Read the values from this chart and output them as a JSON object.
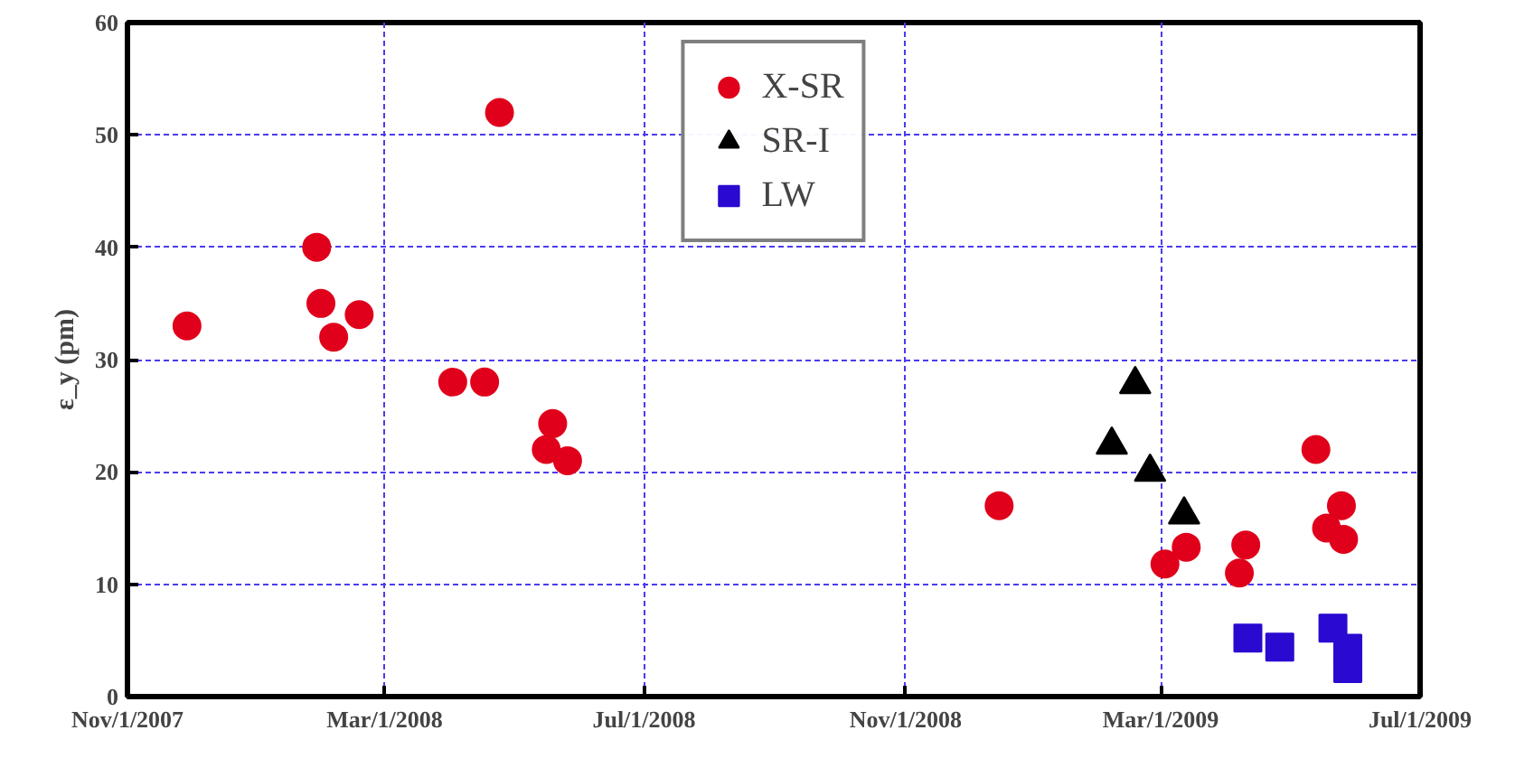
{
  "chart_data": {
    "type": "scatter",
    "ylabel": "ε_y (pm)",
    "xlim": [
      "2007-11-01",
      "2009-07-01"
    ],
    "xticks": [
      {
        "value": "2007-11-01",
        "label": "Nov/1/2007"
      },
      {
        "value": "2008-03-01",
        "label": "Mar/1/2008"
      },
      {
        "value": "2008-07-01",
        "label": "Jul/1/2008"
      },
      {
        "value": "2008-11-01",
        "label": "Nov/1/2008"
      },
      {
        "value": "2009-03-01",
        "label": "Mar/1/2009"
      },
      {
        "value": "2009-07-01",
        "label": "Jul/1/2009"
      }
    ],
    "ylim": [
      0,
      60
    ],
    "yticks": [
      0,
      10,
      20,
      30,
      40,
      50,
      60
    ],
    "grid": true,
    "legend": "top",
    "series": [
      {
        "name": "X-SR",
        "color": "#e0001b",
        "marker": "circle",
        "x": [
          "2007-11-29",
          "2008-01-29",
          "2008-01-31",
          "2008-02-06",
          "2008-02-18",
          "2008-04-02",
          "2008-04-17",
          "2008-04-24",
          "2008-05-16",
          "2008-05-19",
          "2008-05-26",
          "2008-12-15",
          "2009-03-03",
          "2009-03-13",
          "2009-04-07",
          "2009-04-10",
          "2009-05-13",
          "2009-05-18",
          "2009-05-25",
          "2009-05-26"
        ],
        "values": [
          33,
          40,
          35,
          32,
          34,
          28,
          28,
          52,
          22,
          24.3,
          21,
          17,
          11.8,
          13.3,
          11,
          13.5,
          22,
          15,
          17,
          14
        ]
      },
      {
        "name": "SR-I",
        "color": "#000000",
        "marker": "triangle",
        "x": [
          "2009-02-06",
          "2009-02-17",
          "2009-02-24",
          "2009-03-12"
        ],
        "values": [
          22.4,
          27.8,
          20,
          16.2
        ]
      },
      {
        "name": "LW",
        "color": "#2a0ad0",
        "marker": "square",
        "x": [
          "2009-04-11",
          "2009-04-26",
          "2009-05-21",
          "2009-05-28",
          "2009-05-28"
        ],
        "values": [
          5.2,
          4.4,
          6.1,
          4.3,
          2.5
        ]
      }
    ]
  }
}
